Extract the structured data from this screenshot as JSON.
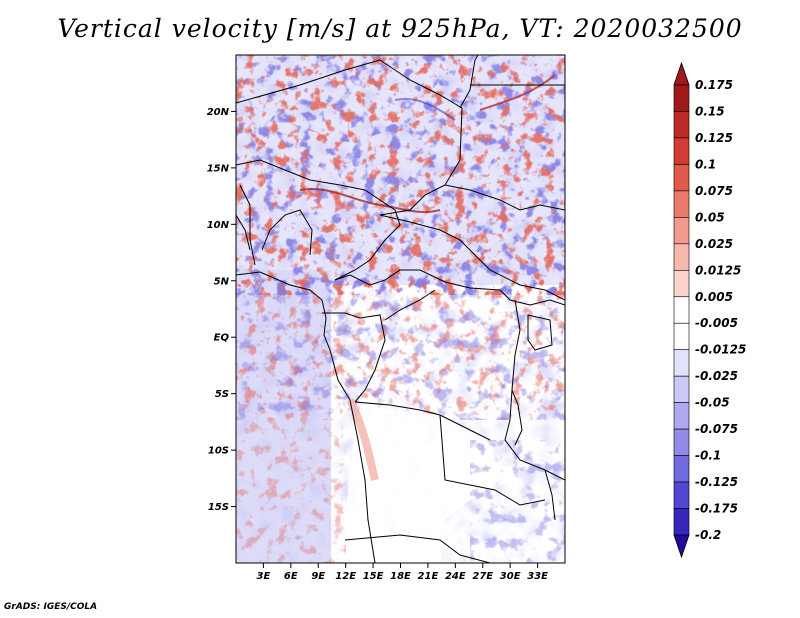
{
  "title": "Vertical velocity [m/s] at 925hPa, VT: 2020032500",
  "credit": "GrADS: IGES/COLA",
  "map": {
    "lon_range": [
      0,
      36
    ],
    "lat_range": [
      -20,
      25
    ],
    "lat_ticks": [
      {
        "value": 20,
        "label": "20N"
      },
      {
        "value": 15,
        "label": "15N"
      },
      {
        "value": 10,
        "label": "10N"
      },
      {
        "value": 5,
        "label": "5N"
      },
      {
        "value": 0,
        "label": "EQ"
      },
      {
        "value": -5,
        "label": "5S"
      },
      {
        "value": -10,
        "label": "10S"
      },
      {
        "value": -15,
        "label": "15S"
      }
    ],
    "lon_ticks": [
      {
        "value": 3,
        "label": "3E"
      },
      {
        "value": 6,
        "label": "6E"
      },
      {
        "value": 9,
        "label": "9E"
      },
      {
        "value": 12,
        "label": "12E"
      },
      {
        "value": 15,
        "label": "15E"
      },
      {
        "value": 18,
        "label": "18E"
      },
      {
        "value": 21,
        "label": "21E"
      },
      {
        "value": 24,
        "label": "24E"
      },
      {
        "value": 27,
        "label": "27E"
      },
      {
        "value": 30,
        "label": "30E"
      },
      {
        "value": 33,
        "label": "33E"
      }
    ]
  },
  "colorbar": {
    "levels": [
      {
        "label": "0.175",
        "color": "#a01a1a"
      },
      {
        "label": "0.15",
        "color": "#be2a28"
      },
      {
        "label": "0.125",
        "color": "#d23c36"
      },
      {
        "label": "0.1",
        "color": "#e05a4e"
      },
      {
        "label": "0.075",
        "color": "#ea7a6c"
      },
      {
        "label": "0.05",
        "color": "#f29a8c"
      },
      {
        "label": "0.025",
        "color": "#f7b8ae"
      },
      {
        "label": "0.0125",
        "color": "#fbd3cc"
      },
      {
        "label": "0.005",
        "color": "#fde8e4"
      },
      {
        "label": "-0.005",
        "color": "#ffffff"
      },
      {
        "label": "-0.0125",
        "color": "#e2e2fb"
      },
      {
        "label": "-0.025",
        "color": "#c9c8f6"
      },
      {
        "label": "-0.05",
        "color": "#aeaaf0"
      },
      {
        "label": "-0.075",
        "color": "#918cea"
      },
      {
        "label": "-0.1",
        "color": "#716be0"
      },
      {
        "label": "-0.125",
        "color": "#5148d2"
      },
      {
        "label": "-0.175",
        "color": "#3526bc"
      },
      {
        "label": "-0.2",
        "color": "#1f0a9e"
      }
    ],
    "bottom_tip_color": "#1f0a9e",
    "top_tip_color": "#a01a1a",
    "zero_band_color": "#ffffff"
  }
}
